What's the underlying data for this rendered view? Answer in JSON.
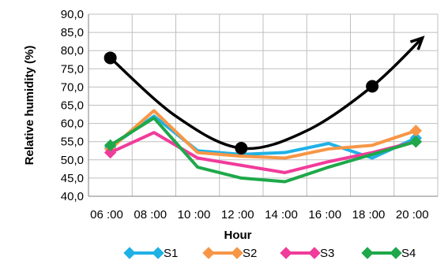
{
  "chart_data": {
    "type": "line",
    "title": "",
    "xlabel": "Hour",
    "ylabel": "Relative humidity (%)",
    "ylim": [
      40,
      90
    ],
    "ytick_step": 5,
    "ytick_labels": [
      "40,0",
      "45,0",
      "50,0",
      "55,0",
      "60,0",
      "65,0",
      "70,0",
      "75,0",
      "80,0",
      "85,0",
      "90,0"
    ],
    "x": [
      6,
      8,
      10,
      12,
      14,
      16,
      18,
      20
    ],
    "x_tick_labels": [
      "06 :00",
      "08 :00",
      "10 :00",
      "12 :00",
      "14 :00",
      "16 :00",
      "18 :00",
      "20 :00"
    ],
    "grid": true,
    "legend_position": "bottom",
    "series": [
      {
        "name": "S1",
        "color": "#1fb1e6",
        "marker": "diamond",
        "x": [
          5,
          7,
          9,
          11,
          13,
          15,
          17,
          19
        ],
        "values": [
          53.5,
          62.0,
          52.5,
          51.5,
          52.0,
          54.5,
          50.5,
          56.0
        ]
      },
      {
        "name": "S2",
        "color": "#f79646",
        "marker": "diamond",
        "x": [
          5,
          7,
          9,
          11,
          13,
          15,
          17,
          19
        ],
        "values": [
          53.0,
          63.5,
          52.0,
          51.0,
          50.5,
          53.0,
          54.0,
          58.0
        ]
      },
      {
        "name": "S3",
        "color": "#f03c9b",
        "marker": "diamond",
        "x": [
          5,
          7,
          9,
          11,
          13,
          15,
          17,
          19
        ],
        "values": [
          52.0,
          57.5,
          50.5,
          48.5,
          46.5,
          49.5,
          52.0,
          55.0
        ]
      },
      {
        "name": "S4",
        "color": "#1ea84a",
        "marker": "diamond",
        "x": [
          5,
          7,
          9,
          11,
          13,
          15,
          17,
          19
        ],
        "values": [
          54.0,
          61.5,
          48.0,
          45.0,
          44.0,
          48.0,
          51.5,
          55.0
        ]
      }
    ],
    "annotation_curve": {
      "color": "#000000",
      "points": [
        {
          "x": 5.0,
          "y": 78.0
        },
        {
          "x": 11.0,
          "y": 53.2
        },
        {
          "x": 17.0,
          "y": 70.2
        }
      ],
      "curve_through": [
        [
          5.0,
          78.0
        ],
        [
          8.0,
          62.0
        ],
        [
          11.0,
          53.2
        ],
        [
          14.0,
          58.0
        ],
        [
          17.0,
          70.2
        ],
        [
          19.3,
          83.5
        ]
      ],
      "arrow_end": true
    }
  }
}
